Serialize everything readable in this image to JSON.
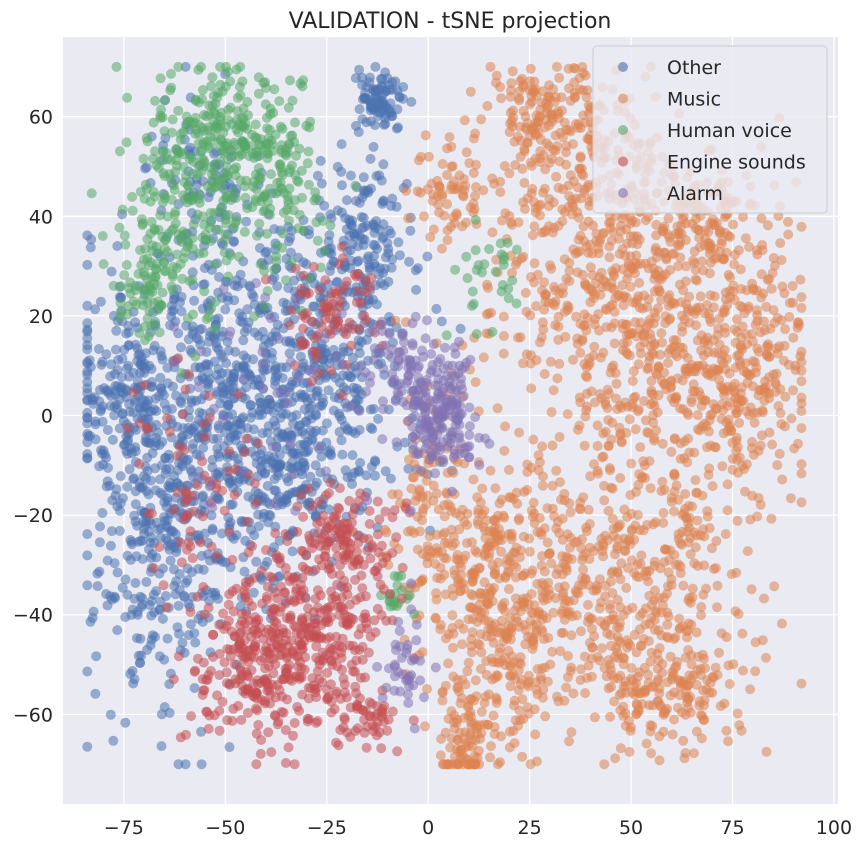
{
  "chart_data": {
    "type": "scatter",
    "title": "VALIDATION - tSNE projection",
    "xlabel": "",
    "ylabel": "",
    "xlim": [
      -90,
      101
    ],
    "ylim": [
      -78,
      76
    ],
    "xticks": [
      -75,
      -50,
      -25,
      0,
      25,
      50,
      75,
      100
    ],
    "yticks": [
      -60,
      -40,
      -20,
      0,
      20,
      40,
      60
    ],
    "xtick_labels": [
      "−75",
      "−50",
      "−25",
      "0",
      "25",
      "50",
      "75",
      "100"
    ],
    "ytick_labels": [
      "−60",
      "−40",
      "−20",
      "0",
      "20",
      "40",
      "60"
    ],
    "grid": true,
    "legend_position": "top-right",
    "background": "#eaeaf2",
    "marker_alpha": 0.55,
    "series": [
      {
        "name": "Other",
        "color": "#4c72b0",
        "clusters": [
          {
            "cx": -50,
            "cy": 5,
            "sx": 18,
            "sy": 16,
            "n": 600
          },
          {
            "cx": -25,
            "cy": 15,
            "sx": 10,
            "sy": 14,
            "n": 280
          },
          {
            "cx": -65,
            "cy": -30,
            "sx": 9,
            "sy": 16,
            "n": 260
          },
          {
            "cx": -75,
            "cy": 5,
            "sx": 5,
            "sy": 8,
            "n": 120
          },
          {
            "cx": -12,
            "cy": 63,
            "sx": 3,
            "sy": 3,
            "n": 90
          },
          {
            "cx": -15,
            "cy": 35,
            "sx": 6,
            "sy": 8,
            "n": 120
          },
          {
            "cx": -40,
            "cy": -15,
            "sx": 15,
            "sy": 10,
            "n": 220
          },
          {
            "cx": -55,
            "cy": 45,
            "sx": 8,
            "sy": 10,
            "n": 80
          }
        ]
      },
      {
        "name": "Music",
        "color": "#dd8452",
        "clusters": [
          {
            "cx": 40,
            "cy": 35,
            "sx": 15,
            "sy": 16,
            "n": 450
          },
          {
            "cx": 60,
            "cy": 10,
            "sx": 14,
            "sy": 18,
            "n": 450
          },
          {
            "cx": 40,
            "cy": -35,
            "sx": 18,
            "sy": 14,
            "n": 550
          },
          {
            "cx": 80,
            "cy": 10,
            "sx": 8,
            "sy": 10,
            "n": 180
          },
          {
            "cx": 15,
            "cy": -35,
            "sx": 9,
            "sy": 14,
            "n": 280
          },
          {
            "cx": 10,
            "cy": -65,
            "sx": 3,
            "sy": 5,
            "n": 80
          },
          {
            "cx": 30,
            "cy": 60,
            "sx": 9,
            "sy": 5,
            "n": 140
          },
          {
            "cx": 60,
            "cy": -55,
            "sx": 10,
            "sy": 6,
            "n": 150
          },
          {
            "cx": 5,
            "cy": 45,
            "sx": 5,
            "sy": 5,
            "n": 60
          },
          {
            "cx": 70,
            "cy": 38,
            "sx": 8,
            "sy": 6,
            "n": 100
          },
          {
            "cx": 0,
            "cy": -20,
            "sx": 4,
            "sy": 10,
            "n": 80
          }
        ]
      },
      {
        "name": "Human voice",
        "color": "#55a868",
        "clusters": [
          {
            "cx": -50,
            "cy": 57,
            "sx": 9,
            "sy": 7,
            "n": 220
          },
          {
            "cx": -60,
            "cy": 38,
            "sx": 8,
            "sy": 10,
            "n": 170
          },
          {
            "cx": -70,
            "cy": 25,
            "sx": 4,
            "sy": 5,
            "n": 60
          },
          {
            "cx": -35,
            "cy": 45,
            "sx": 6,
            "sy": 10,
            "n": 100
          },
          {
            "cx": 15,
            "cy": 28,
            "sx": 4,
            "sy": 5,
            "n": 30
          },
          {
            "cx": -8,
            "cy": -37,
            "sx": 2,
            "sy": 3,
            "n": 20
          }
        ]
      },
      {
        "name": "Engine sounds",
        "color": "#c44e52",
        "clusters": [
          {
            "cx": -30,
            "cy": -45,
            "sx": 9,
            "sy": 9,
            "n": 350
          },
          {
            "cx": -45,
            "cy": -50,
            "sx": 8,
            "sy": 8,
            "n": 150
          },
          {
            "cx": -20,
            "cy": -25,
            "sx": 6,
            "sy": 6,
            "n": 120
          },
          {
            "cx": -25,
            "cy": 20,
            "sx": 6,
            "sy": 6,
            "n": 80
          },
          {
            "cx": -15,
            "cy": -62,
            "sx": 4,
            "sy": 3,
            "n": 40
          },
          {
            "cx": -55,
            "cy": -15,
            "sx": 10,
            "sy": 12,
            "n": 80
          }
        ]
      },
      {
        "name": "Alarm",
        "color": "#8172b3",
        "clusters": [
          {
            "cx": 2,
            "cy": 0,
            "sx": 5,
            "sy": 6,
            "n": 200
          },
          {
            "cx": -8,
            "cy": 10,
            "sx": 5,
            "sy": 6,
            "n": 60
          },
          {
            "cx": -5,
            "cy": -48,
            "sx": 3,
            "sy": 6,
            "n": 40
          },
          {
            "cx": -40,
            "cy": 0,
            "sx": 15,
            "sy": 15,
            "n": 40
          }
        ]
      }
    ]
  }
}
